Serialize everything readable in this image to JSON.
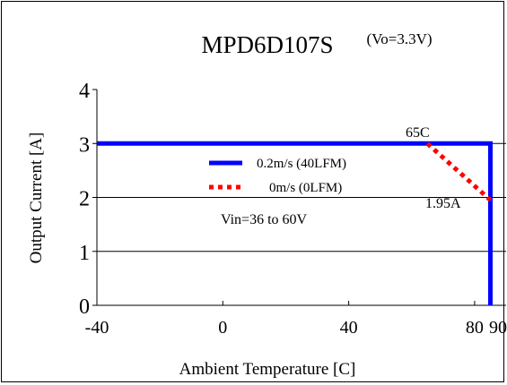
{
  "chart_data": {
    "type": "line",
    "title": "MPD6D107S",
    "subtitle": "(Vo=3.3V)",
    "xlabel": "Ambient Temperature [C]",
    "ylabel": "Output Current [A]",
    "xlim": [
      -40,
      90
    ],
    "ylim": [
      0,
      4
    ],
    "x_ticks": [
      -40,
      0,
      40,
      80,
      90
    ],
    "x_tick_labels": [
      "-40",
      "0",
      "40",
      "80",
      "90"
    ],
    "y_ticks": [
      0,
      1,
      2,
      3,
      4
    ],
    "y_tick_labels": [
      "0",
      "1",
      "2",
      "3",
      "4"
    ],
    "grid": "horizontal",
    "legend_position": "center",
    "series": [
      {
        "name": "0.2m/s (40LFM)",
        "color": "#0000ff",
        "style": "solid",
        "x": [
          -40,
          85,
          85
        ],
        "y": [
          3,
          3,
          0
        ]
      },
      {
        "name": "0m/s (0LFM)",
        "color": "#ff0000",
        "style": "dotted",
        "x": [
          65,
          85
        ],
        "y": [
          3,
          1.95
        ]
      }
    ],
    "annotations": [
      {
        "text": "65C",
        "x": 65,
        "y": 3
      },
      {
        "text": "1.95A",
        "x": 85,
        "y": 1.95
      },
      {
        "text": "Vin=36 to 60V",
        "x": 10,
        "y": 1.5
      }
    ]
  }
}
